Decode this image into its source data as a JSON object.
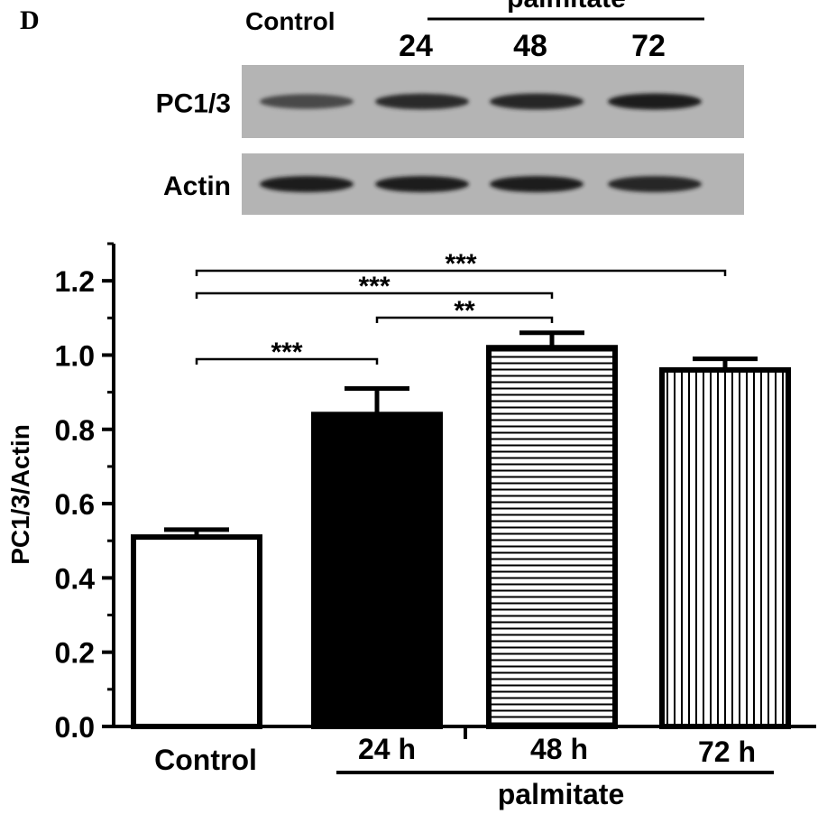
{
  "panel_label": "D",
  "blot": {
    "header_control": "Control",
    "header_treatment": "palmitate",
    "lane_hours": [
      "24",
      "48",
      "72"
    ],
    "rows": [
      {
        "label": "PC1/3",
        "band_intensity": [
          0.62,
          0.78,
          0.82,
          0.85
        ]
      },
      {
        "label": "Actin",
        "band_intensity": [
          0.85,
          0.85,
          0.85,
          0.82
        ]
      }
    ]
  },
  "chart_data": {
    "type": "bar",
    "categories": [
      "Control",
      "24 h",
      "48 h",
      "72 h"
    ],
    "values": [
      0.51,
      0.84,
      1.02,
      0.96
    ],
    "errors": [
      0.02,
      0.07,
      0.04,
      0.03
    ],
    "fills": [
      "white",
      "black",
      "horizontal-stripes",
      "vertical-stripes"
    ],
    "ylabel": "PC1/3/Actin",
    "xlabel": "",
    "group_label": "palmitate",
    "ylim": [
      0,
      1.3
    ],
    "yticks": [
      "0.0",
      "0.2",
      "0.4",
      "0.6",
      "0.8",
      "1.0",
      "1.2"
    ],
    "grid": false,
    "significance": [
      {
        "from": 0,
        "to": 3,
        "label": "***"
      },
      {
        "from": 0,
        "to": 2,
        "label": "***"
      },
      {
        "from": 1,
        "to": 2,
        "label": "**"
      },
      {
        "from": 0,
        "to": 1,
        "label": "***"
      }
    ]
  }
}
